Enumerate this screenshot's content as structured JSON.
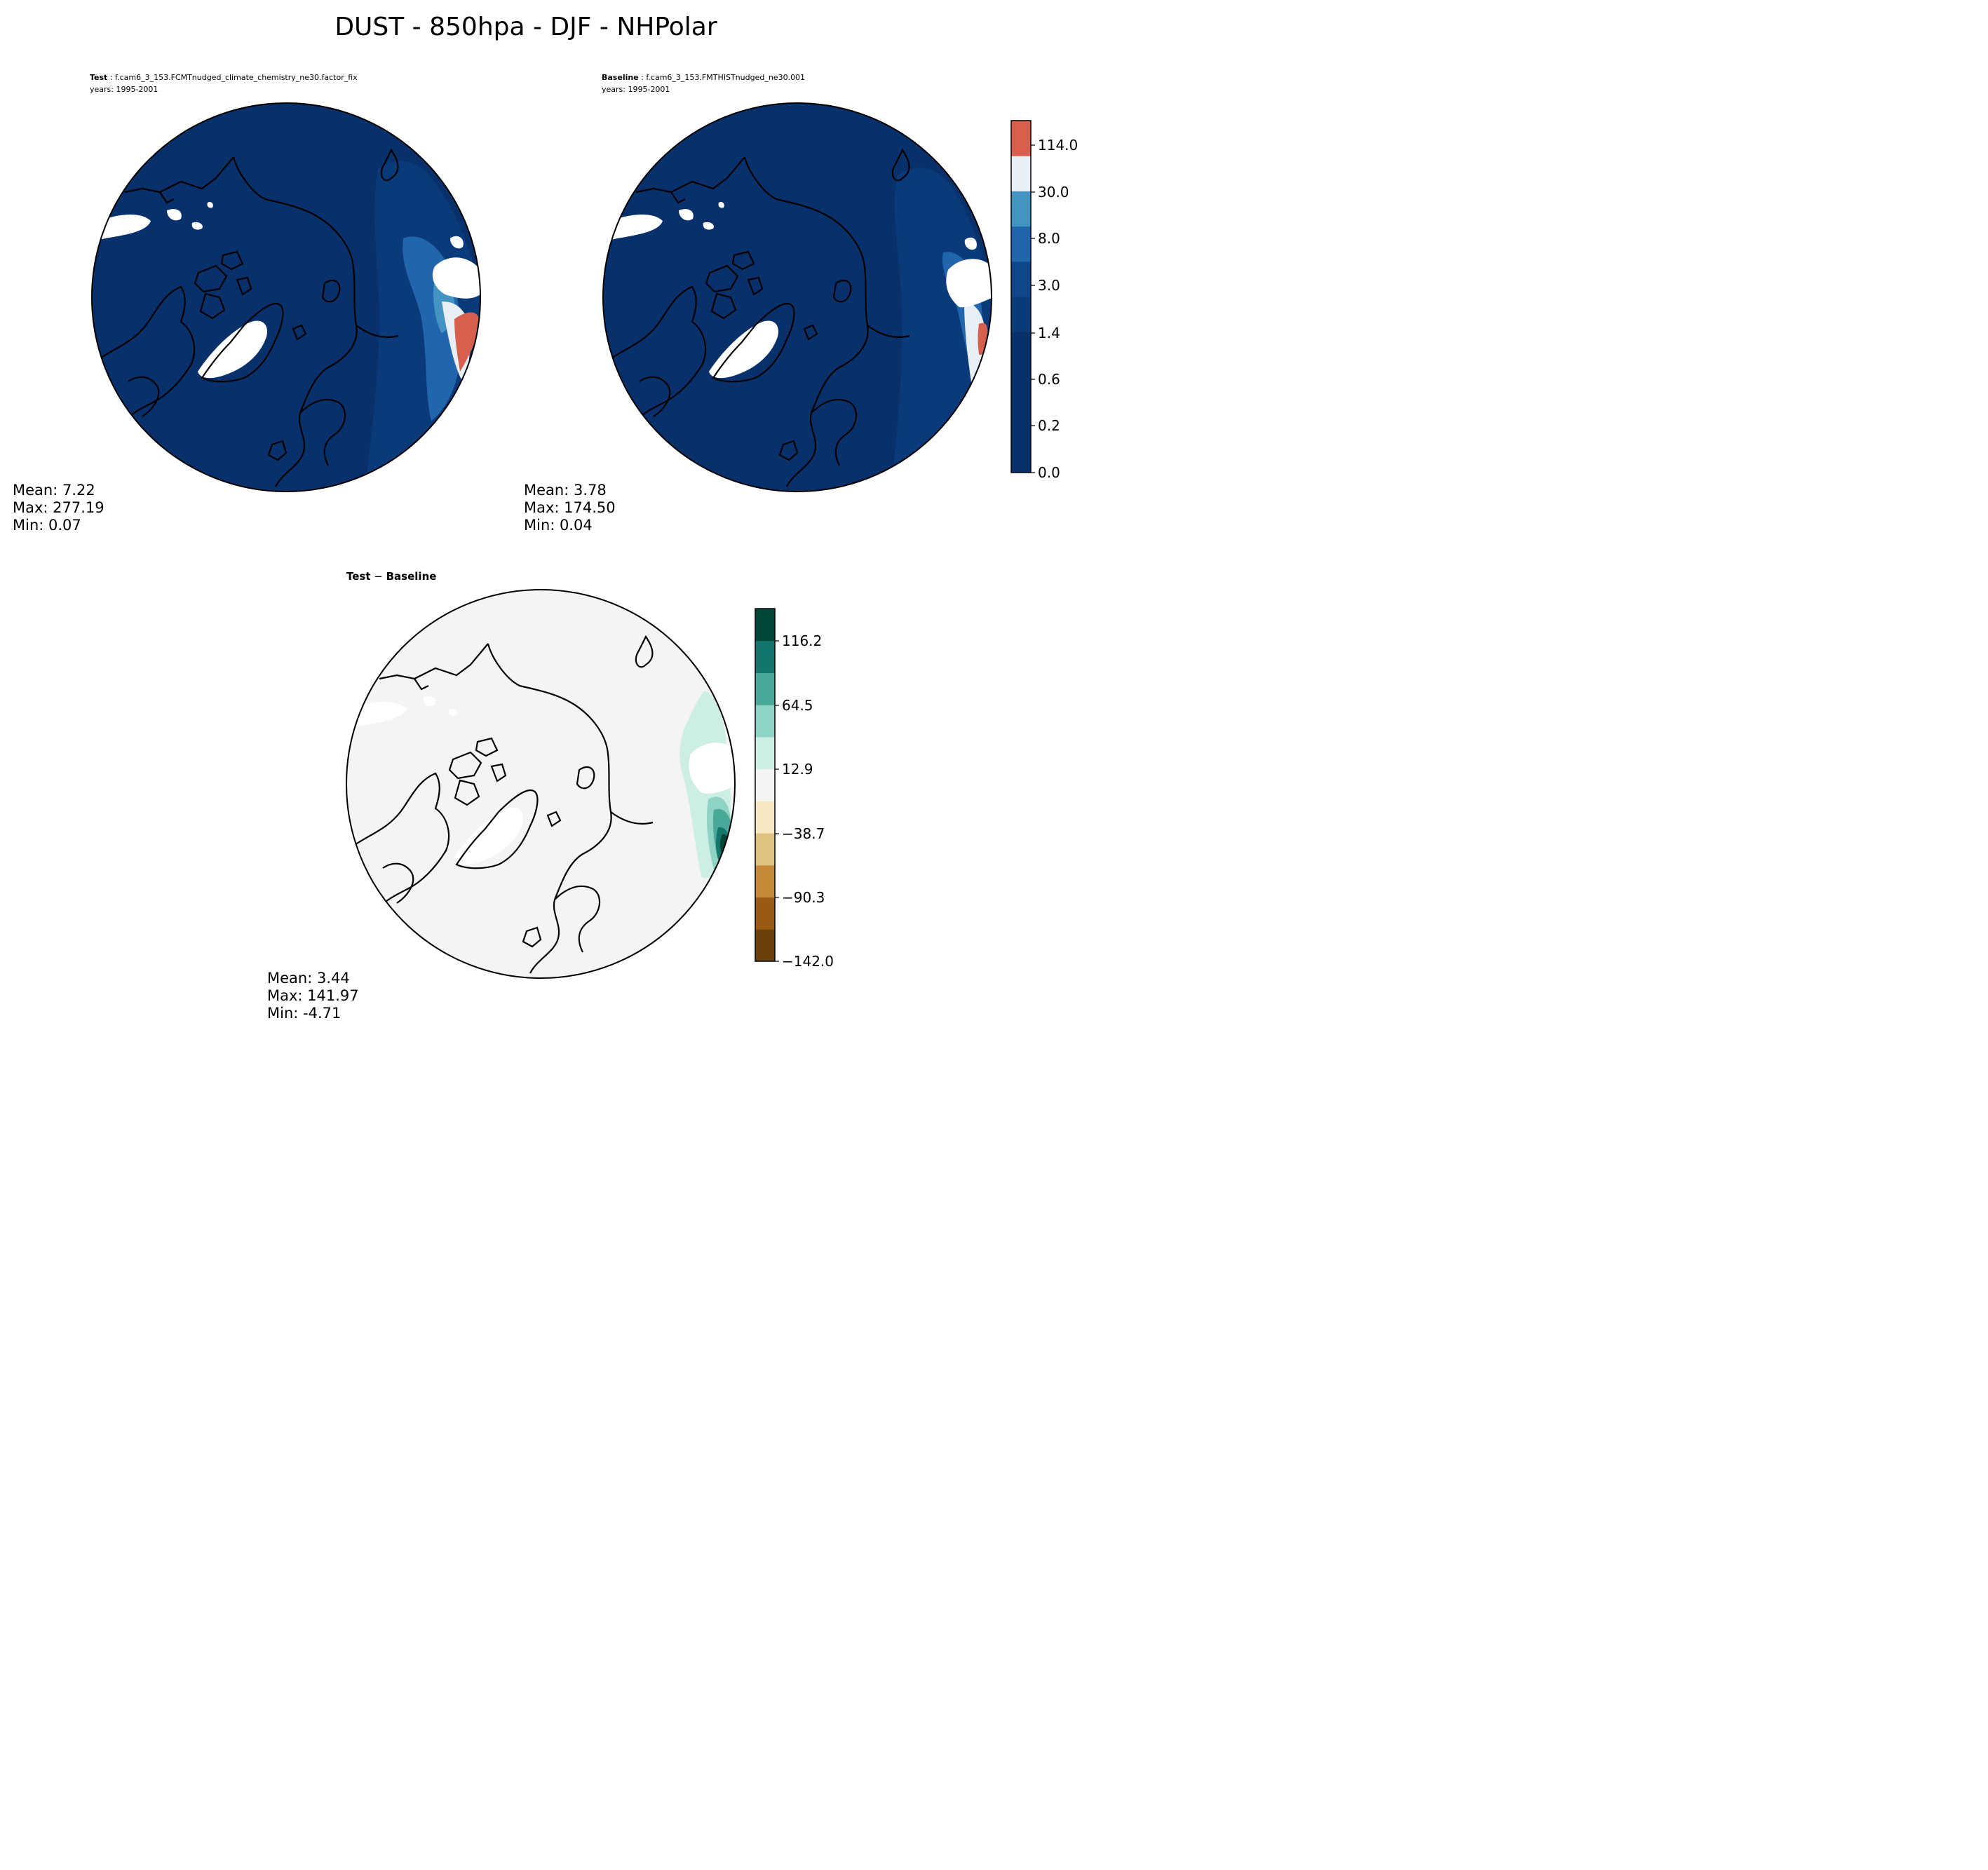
{
  "figure": {
    "title": "DUST - 850hpa - DJF - NHPolar"
  },
  "panels": {
    "test": {
      "label_bold": "Test",
      "label_rest": " : f.cam6_3_153.FCMTnudged_climate_chemistry_ne30.factor_fix",
      "years": "years: 1995-2001",
      "stats": {
        "mean": "Mean:  7.22",
        "max": "Max: 277.19",
        "min": "Min:  0.07"
      }
    },
    "baseline": {
      "label_bold": "Baseline",
      "label_rest": " : f.cam6_3_153.FMTHISTnudged_ne30.001",
      "years": "years: 1995-2001",
      "stats": {
        "mean": "Mean:  3.78",
        "max": "Max: 174.50",
        "min": "Min:  0.04"
      }
    },
    "diff": {
      "label_bold": "Test",
      "label_rest": " − ",
      "label_bold2": "Baseline",
      "stats": {
        "mean": "Mean:  3.44",
        "max": "Max: 141.97",
        "min": "Min: -4.71"
      }
    }
  },
  "colorbars": {
    "main": {
      "tick_labels": [
        "0.0",
        "0.2",
        "0.6",
        "1.4",
        "3.0",
        "8.0",
        "30.0",
        "114.0"
      ],
      "colors": [
        "#08306b",
        "#08306b",
        "#08306b",
        "#08306b",
        "#0b3a7a",
        "#10468a",
        "#2166ac",
        "#4393c3",
        "#e8eef6",
        "#d6604d"
      ]
    },
    "diff": {
      "tick_labels": [
        "−142.0",
        "−90.3",
        "−38.7",
        "12.9",
        "64.5",
        "116.2"
      ],
      "colors": [
        "#6b3f0c",
        "#9a5a16",
        "#c48a3a",
        "#dfc27d",
        "#f6e8c3",
        "#f4f5f3",
        "#cdeee5",
        "#8fd3c4",
        "#4aa898",
        "#14756c",
        "#014636"
      ]
    }
  },
  "colors": {
    "ocean_main": "#08306b",
    "ocean_diff": "#f4f5f3",
    "missing": "#ffffff",
    "coast": "#000000"
  }
}
